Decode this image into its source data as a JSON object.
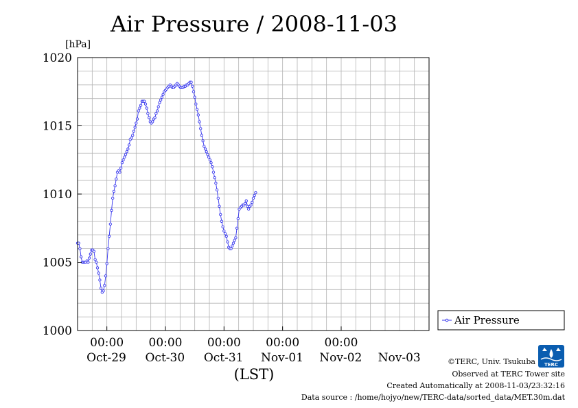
{
  "chart_data": {
    "type": "line",
    "title": "Air Pressure / 2008-11-03",
    "unit_label": "[hPa]",
    "xlabel": "(LST)",
    "ylim": [
      1000,
      1020
    ],
    "y_ticks": [
      1000,
      1005,
      1010,
      1015,
      1020
    ],
    "y_tick_labels": [
      "1000",
      "1005",
      "1010",
      "1015",
      "1020"
    ],
    "x_range_hours": [
      -10,
      110
    ],
    "x_time_labels": [
      "00:00",
      "00:00",
      "00:00",
      "00:00",
      "00:00"
    ],
    "x_time_positions": [
      0,
      20,
      40,
      60,
      80
    ],
    "x_day_labels": [
      "Oct-29",
      "Oct-30",
      "Oct-31",
      "Nov-01",
      "Nov-02",
      "Nov-03"
    ],
    "x_day_positions": [
      -10,
      10,
      30,
      50,
      70,
      90
    ],
    "grid": true,
    "legend_position": "right",
    "series": [
      {
        "name": "Air Pressure",
        "color": "#3333ee",
        "points": [
          [
            -10,
            1006.4
          ],
          [
            -9.6,
            1006.4
          ],
          [
            -9.2,
            1006.0
          ],
          [
            -8.8,
            1005.4
          ],
          [
            -8.4,
            1005.0
          ],
          [
            -8,
            1005.0
          ],
          [
            -7.6,
            1005.0
          ],
          [
            -7.2,
            1005.0
          ],
          [
            -6.8,
            1005.1
          ],
          [
            -6.4,
            1005.0
          ],
          [
            -6,
            1005.3
          ],
          [
            -5.6,
            1005.6
          ],
          [
            -5.2,
            1005.9
          ],
          [
            -4.8,
            1005.9
          ],
          [
            -4.4,
            1005.8
          ],
          [
            -4,
            1005.2
          ],
          [
            -3.6,
            1005.0
          ],
          [
            -3.2,
            1004.6
          ],
          [
            -2.8,
            1004.2
          ],
          [
            -2.4,
            1003.7
          ],
          [
            -2,
            1003.1
          ],
          [
            -1.6,
            1002.8
          ],
          [
            -1.2,
            1002.9
          ],
          [
            -0.8,
            1003.3
          ],
          [
            -0.4,
            1004.0
          ],
          [
            0,
            1004.9
          ],
          [
            0.4,
            1006.0
          ],
          [
            0.8,
            1006.9
          ],
          [
            1.2,
            1007.8
          ],
          [
            1.6,
            1008.8
          ],
          [
            2,
            1009.7
          ],
          [
            2.4,
            1010.2
          ],
          [
            2.8,
            1010.6
          ],
          [
            3.2,
            1011.1
          ],
          [
            3.6,
            1011.6
          ],
          [
            4,
            1011.7
          ],
          [
            4.4,
            1011.6
          ],
          [
            4.8,
            1011.9
          ],
          [
            5.2,
            1012.3
          ],
          [
            5.6,
            1012.5
          ],
          [
            6,
            1012.7
          ],
          [
            6.4,
            1012.9
          ],
          [
            6.8,
            1013.1
          ],
          [
            7.2,
            1013.3
          ],
          [
            7.6,
            1013.6
          ],
          [
            8,
            1014.0
          ],
          [
            8.4,
            1014.1
          ],
          [
            8.8,
            1014.3
          ],
          [
            9.2,
            1014.6
          ],
          [
            9.6,
            1014.9
          ],
          [
            10,
            1015.2
          ],
          [
            10.4,
            1015.5
          ],
          [
            10.8,
            1016.1
          ],
          [
            11.2,
            1016.3
          ],
          [
            11.6,
            1016.5
          ],
          [
            12,
            1016.8
          ],
          [
            12.4,
            1016.8
          ],
          [
            12.8,
            1016.8
          ],
          [
            13.2,
            1016.6
          ],
          [
            13.6,
            1016.3
          ],
          [
            14,
            1015.9
          ],
          [
            14.4,
            1015.6
          ],
          [
            14.8,
            1015.3
          ],
          [
            15.2,
            1015.2
          ],
          [
            15.6,
            1015.3
          ],
          [
            16,
            1015.5
          ],
          [
            16.4,
            1015.6
          ],
          [
            16.8,
            1015.9
          ],
          [
            17.2,
            1016.1
          ],
          [
            17.6,
            1016.4
          ],
          [
            18,
            1016.7
          ],
          [
            18.4,
            1016.9
          ],
          [
            18.8,
            1017.1
          ],
          [
            19.2,
            1017.3
          ],
          [
            19.6,
            1017.5
          ],
          [
            20,
            1017.6
          ],
          [
            20.4,
            1017.7
          ],
          [
            20.8,
            1017.8
          ],
          [
            21.2,
            1017.9
          ],
          [
            21.6,
            1018.0
          ],
          [
            22,
            1017.9
          ],
          [
            22.4,
            1017.8
          ],
          [
            22.8,
            1017.8
          ],
          [
            23.2,
            1017.9
          ],
          [
            23.6,
            1018.0
          ],
          [
            24,
            1018.1
          ],
          [
            24.4,
            1018.0
          ],
          [
            24.8,
            1017.9
          ],
          [
            25.2,
            1017.8
          ],
          [
            25.6,
            1017.8
          ],
          [
            26,
            1017.8
          ],
          [
            26.4,
            1017.9
          ],
          [
            26.8,
            1017.9
          ],
          [
            27.2,
            1018.0
          ],
          [
            27.6,
            1018.0
          ],
          [
            28,
            1018.1
          ],
          [
            28.4,
            1018.2
          ],
          [
            28.8,
            1018.2
          ],
          [
            29.2,
            1017.9
          ],
          [
            29.6,
            1017.5
          ],
          [
            30,
            1017.1
          ],
          [
            30.4,
            1016.6
          ],
          [
            30.8,
            1016.2
          ],
          [
            31.2,
            1015.8
          ],
          [
            31.6,
            1015.3
          ],
          [
            32,
            1014.8
          ],
          [
            32.4,
            1014.3
          ],
          [
            32.8,
            1013.9
          ],
          [
            33.2,
            1013.5
          ],
          [
            33.6,
            1013.3
          ],
          [
            34,
            1013.1
          ],
          [
            34.4,
            1012.9
          ],
          [
            34.8,
            1012.7
          ],
          [
            35.2,
            1012.5
          ],
          [
            35.6,
            1012.3
          ],
          [
            36,
            1012.0
          ],
          [
            36.4,
            1011.6
          ],
          [
            36.8,
            1011.2
          ],
          [
            37.2,
            1010.8
          ],
          [
            37.6,
            1010.3
          ],
          [
            38,
            1009.7
          ],
          [
            38.4,
            1009.1
          ],
          [
            38.8,
            1008.5
          ],
          [
            39.2,
            1008.0
          ],
          [
            39.6,
            1007.6
          ],
          [
            40,
            1007.3
          ],
          [
            40.4,
            1007.1
          ],
          [
            40.8,
            1006.9
          ],
          [
            41.2,
            1006.5
          ],
          [
            41.6,
            1006.1
          ],
          [
            42,
            1006.0
          ],
          [
            42.4,
            1006.0
          ],
          [
            42.8,
            1006.2
          ],
          [
            43.2,
            1006.4
          ],
          [
            43.6,
            1006.6
          ],
          [
            44,
            1006.8
          ],
          [
            44.4,
            1007.5
          ],
          [
            44.8,
            1008.2
          ],
          [
            45.2,
            1008.9
          ],
          [
            45.6,
            1009.0
          ],
          [
            46,
            1009.1
          ],
          [
            46.4,
            1009.2
          ],
          [
            46.8,
            1009.2
          ],
          [
            47.2,
            1009.3
          ],
          [
            47.6,
            1009.5
          ],
          [
            48,
            1009.1
          ],
          [
            48.4,
            1008.9
          ],
          [
            48.8,
            1009.1
          ],
          [
            49.2,
            1009.2
          ],
          [
            49.6,
            1009.4
          ],
          [
            50,
            1009.7
          ],
          [
            50.4,
            1009.9
          ],
          [
            50.8,
            1010.1
          ]
        ]
      }
    ]
  },
  "legend": {
    "label": "Air Pressure"
  },
  "footer": {
    "copyright": "©TERC, Univ. Tsukuba",
    "observed": "Observed at TERC Tower site",
    "created": "Created Automatically at 2008-11-03/23:32:16",
    "source": "Data source : /home/hojyo/new/TERC-data/sorted_data/MET.30m.dat"
  },
  "logo": {
    "text": "TERC",
    "color": "#0a5db0"
  }
}
